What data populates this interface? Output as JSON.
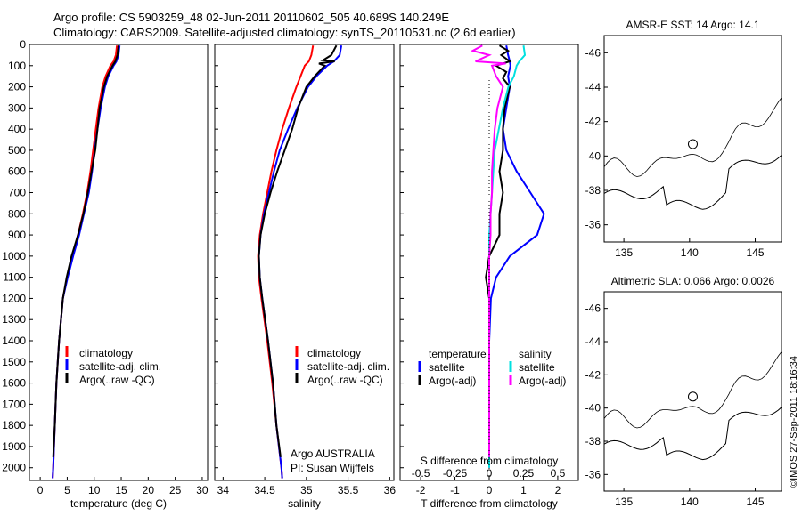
{
  "header": {
    "line1": "Argo profile: CS 5903259_48 02-Jun-2011 20110602_505 40.689S 140.249E",
    "line2": "Climatology: CARS2009. Satellite-adjusted climatology: synTS_20110531.nc (2.6d earlier)"
  },
  "footer_stamp": "©IMOS 27-Sep-2011 18:16:34",
  "colors": {
    "climatology": "#ff0000",
    "satellite": "#0000ff",
    "argo": "#000000",
    "satellite_salinity": "#00e0e0",
    "argo_salinity": "#ff00ff",
    "land": "#f9c69c"
  },
  "chart_data": [
    {
      "id": "temperature",
      "type": "line",
      "xlabel": "temperature (deg C)",
      "ylabel": "",
      "xlim": [
        -2,
        31
      ],
      "ylim": [
        2060,
        0
      ],
      "xticks": [
        0,
        5,
        10,
        15,
        20,
        25,
        30
      ],
      "yticks": [
        0,
        100,
        200,
        300,
        400,
        500,
        600,
        700,
        800,
        900,
        1000,
        1100,
        1200,
        1300,
        1400,
        1500,
        1600,
        1700,
        1800,
        1900,
        2000
      ],
      "legend": [
        "climatology",
        "satellite-adj. clim.",
        "Argo(..raw -QC)"
      ],
      "series": [
        {
          "name": "climatology",
          "color": "#ff0000",
          "depth": [
            5,
            50,
            80,
            100,
            150,
            200,
            300,
            400,
            500,
            600,
            700,
            800,
            900,
            1000,
            1100,
            1200,
            1400,
            1600,
            1800,
            2000,
            2050
          ],
          "values": [
            14.2,
            14.0,
            13.6,
            13.0,
            12.1,
            11.5,
            10.8,
            10.3,
            9.8,
            9.3,
            8.7,
            7.9,
            7.0,
            6.0,
            5.0,
            4.2,
            3.5,
            3.0,
            2.7,
            2.4,
            2.3
          ]
        },
        {
          "name": "satellite-adj. clim.",
          "color": "#0000ff",
          "depth": [
            5,
            50,
            80,
            100,
            150,
            200,
            300,
            400,
            500,
            600,
            700,
            800,
            900,
            1000,
            1100,
            1200,
            1400,
            1600,
            1800,
            2000,
            2050
          ],
          "values": [
            14.7,
            14.5,
            14.1,
            13.6,
            12.6,
            12.0,
            11.2,
            10.6,
            10.1,
            9.6,
            9.0,
            8.1,
            7.2,
            6.1,
            5.1,
            4.2,
            3.5,
            3.0,
            2.7,
            2.4,
            2.3
          ]
        },
        {
          "name": "Argo(..raw -QC)",
          "color": "#000000",
          "depth": [
            5,
            50,
            80,
            100,
            150,
            200,
            300,
            400,
            500,
            600,
            700,
            800,
            900,
            1000,
            1100,
            1200,
            1400,
            1600,
            1800,
            1950
          ],
          "values": [
            14.5,
            14.3,
            13.9,
            13.4,
            12.4,
            11.8,
            11.0,
            10.6,
            10.2,
            9.5,
            8.8,
            8.0,
            7.0,
            5.8,
            4.9,
            4.2,
            3.5,
            3.0,
            2.7,
            2.4
          ]
        }
      ]
    },
    {
      "id": "salinity",
      "type": "line",
      "xlabel": "salinity",
      "ylabel": "",
      "xlim": [
        33.9,
        36.05
      ],
      "ylim": [
        2060,
        0
      ],
      "xticks": [
        34,
        34.5,
        35,
        35.5,
        36
      ],
      "legend": [
        "climatology",
        "satellite-adj. clim.",
        "Argo(..raw -QC)"
      ],
      "annotation": [
        "Argo AUSTRALIA",
        "PI: Susan Wijffels"
      ],
      "series": [
        {
          "name": "climatology",
          "color": "#ff0000",
          "depth": [
            5,
            50,
            80,
            100,
            150,
            200,
            300,
            400,
            500,
            600,
            700,
            800,
            900,
            1000,
            1100,
            1200,
            1400,
            1600,
            1800,
            2000,
            2050
          ],
          "values": [
            35.08,
            35.06,
            35.03,
            34.98,
            34.93,
            34.88,
            34.79,
            34.71,
            34.64,
            34.58,
            34.53,
            34.48,
            34.44,
            34.42,
            34.43,
            34.46,
            34.53,
            34.59,
            34.64,
            34.7,
            34.71
          ]
        },
        {
          "name": "satellite-adj. clim.",
          "color": "#0000ff",
          "depth": [
            5,
            50,
            80,
            100,
            150,
            200,
            300,
            400,
            500,
            600,
            700,
            800,
            900,
            1000,
            1100,
            1200,
            1400,
            1600,
            1800,
            2000,
            2050
          ],
          "values": [
            35.42,
            35.4,
            35.33,
            35.25,
            35.12,
            35.02,
            34.89,
            34.78,
            34.68,
            34.61,
            34.55,
            34.49,
            34.45,
            34.43,
            34.44,
            34.47,
            34.54,
            34.6,
            34.64,
            34.7,
            34.71
          ]
        },
        {
          "name": "Argo(..raw -QC)",
          "color": "#000000",
          "depth": [
            5,
            50,
            75,
            80,
            90,
            100,
            150,
            200,
            300,
            400,
            500,
            600,
            700,
            800,
            900,
            1000,
            1100,
            1200,
            1400,
            1600,
            1800,
            1950
          ],
          "values": [
            35.36,
            35.3,
            35.2,
            35.34,
            35.15,
            35.22,
            35.1,
            35.0,
            34.9,
            34.83,
            34.74,
            34.65,
            34.57,
            34.5,
            34.45,
            34.43,
            34.44,
            34.47,
            34.54,
            34.6,
            34.64,
            34.69
          ]
        }
      ]
    },
    {
      "id": "difference",
      "type": "line",
      "xlabel": "T difference from climatology",
      "xlabel_top": "S difference from climatology",
      "xlim": [
        -2.6,
        2.6
      ],
      "ylim": [
        2060,
        0
      ],
      "xticks": [
        -2,
        -1,
        0,
        1,
        2
      ],
      "xtick_labels": [
        "-2",
        "-1",
        "0",
        "1",
        "2"
      ],
      "xticks_S": [
        -0.5,
        -0.25,
        0,
        0.25,
        0.5
      ],
      "xtick_labels_S": [
        "-0.5",
        "-0.25",
        "0",
        "0.25",
        "0.5"
      ],
      "legend_left": {
        "title": "temperature",
        "items": [
          "satellite",
          "Argo(-adj)"
        ]
      },
      "legend_right": {
        "title": "salinity",
        "items": [
          "satellite",
          "Argo(-adj)"
        ]
      },
      "series": [
        {
          "name": "temperature satellite",
          "color": "#0000ff",
          "depth": [
            5,
            50,
            80,
            100,
            150,
            200,
            300,
            400,
            500,
            600,
            700,
            800,
            900,
            1000,
            1100,
            1200,
            1400,
            1600,
            2000
          ],
          "values": [
            0.5,
            0.55,
            0.6,
            0.62,
            0.55,
            0.6,
            0.5,
            0.4,
            0.5,
            0.8,
            1.2,
            1.6,
            1.4,
            0.6,
            0.2,
            0.05,
            0.0,
            0.0,
            0.0
          ]
        },
        {
          "name": "temperature Argo(-adj)",
          "color": "#000000",
          "depth": [
            5,
            30,
            50,
            80,
            100,
            130,
            160,
            200,
            300,
            400,
            500,
            600,
            700,
            800,
            900,
            1000,
            1100,
            1200,
            1400,
            1600,
            1800,
            1950
          ],
          "values": [
            0.3,
            0.55,
            0.35,
            0.6,
            0.2,
            0.5,
            0.4,
            0.6,
            0.45,
            0.4,
            0.4,
            0.3,
            0.4,
            0.3,
            0.3,
            0.0,
            -0.1,
            0.0,
            0.0,
            0.0,
            0.0,
            0.0
          ]
        },
        {
          "name": "salinity satellite",
          "color": "#00e0e0",
          "depth": [
            5,
            50,
            80,
            100,
            150,
            200,
            300,
            400,
            500,
            600,
            700,
            800,
            900,
            1000,
            1100,
            1200,
            1400,
            1600,
            2000
          ],
          "values": [
            0.25,
            0.26,
            0.22,
            0.2,
            0.18,
            0.14,
            0.1,
            0.07,
            0.04,
            0.03,
            0.02,
            0.01,
            0.0,
            0.0,
            0.0,
            0.0,
            0.0,
            0.0,
            0.0
          ]
        },
        {
          "name": "salinity Argo(-adj)",
          "color": "#ff00ff",
          "depth": [
            5,
            30,
            50,
            80,
            90,
            100,
            150,
            200,
            300,
            400,
            500,
            600,
            700,
            800,
            900,
            1000,
            1100,
            1200,
            1400,
            1600,
            1800,
            1950
          ],
          "values": [
            -0.05,
            -0.12,
            0.0,
            -0.1,
            0.12,
            0.02,
            0.05,
            0.1,
            0.06,
            0.04,
            0.03,
            0.02,
            0.02,
            0.01,
            0.01,
            0.0,
            0.0,
            0.0,
            0.0,
            0.0,
            0.0,
            0.0
          ]
        }
      ]
    },
    {
      "id": "sst_map",
      "type": "heatmap",
      "title": "AMSR-E SST: 14 Argo: 14.1",
      "xlim": [
        133.5,
        147
      ],
      "ylim": [
        -47,
        -35
      ],
      "xticks": [
        135,
        140,
        145
      ],
      "yticks": [
        -36,
        -38,
        -40,
        -42,
        -44,
        -46
      ],
      "marker": {
        "lon": 140.249,
        "lat": -40.689
      }
    },
    {
      "id": "sla_map",
      "type": "heatmap",
      "title": "Altimetric SLA: 0.066 Argo: 0.0026",
      "xlim": [
        133.5,
        147
      ],
      "ylim": [
        -47,
        -35
      ],
      "xticks": [
        135,
        140,
        145
      ],
      "yticks": [
        -36,
        -38,
        -40,
        -42,
        -44,
        -46
      ],
      "marker": {
        "lon": 140.249,
        "lat": -40.689
      }
    }
  ]
}
